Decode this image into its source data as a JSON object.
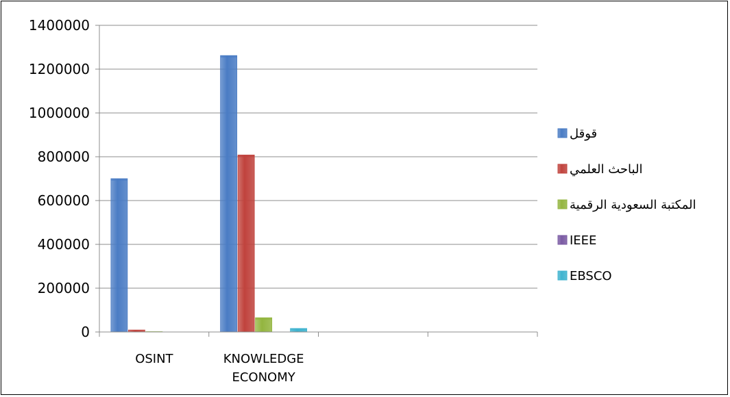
{
  "chart_data": {
    "type": "bar",
    "categories": [
      "OSINT",
      "KNOWLEDGE ECONOMY",
      "",
      ""
    ],
    "category_lines": [
      [
        "OSINT"
      ],
      [
        "KNOWLEDGE",
        "ECONOMY"
      ],
      [],
      []
    ],
    "series": [
      {
        "name": "قوقل",
        "color": "#4a7cc4",
        "values": [
          700000,
          1262000,
          null,
          null
        ]
      },
      {
        "name": "الباحث العلمي",
        "color": "#c0433d",
        "values": [
          9000,
          808000,
          null,
          null
        ]
      },
      {
        "name": "المكتبة السعودية الرقمية",
        "color": "#93b53f",
        "values": [
          1500,
          65000,
          null,
          null
        ]
      },
      {
        "name": "IEEE",
        "color": "#7a5aa3",
        "values": [
          0,
          0,
          null,
          null
        ]
      },
      {
        "name": "EBSCO",
        "color": "#3fb3cf",
        "values": [
          0,
          16000,
          null,
          null
        ]
      }
    ],
    "ylim": [
      0,
      1400000
    ],
    "yticks": [
      "0",
      "200000",
      "400000",
      "600000",
      "800000",
      "1000000",
      "1200000",
      "1400000"
    ],
    "grid": true,
    "legend_position": "right",
    "title": "",
    "xlabel": "",
    "ylabel": ""
  }
}
